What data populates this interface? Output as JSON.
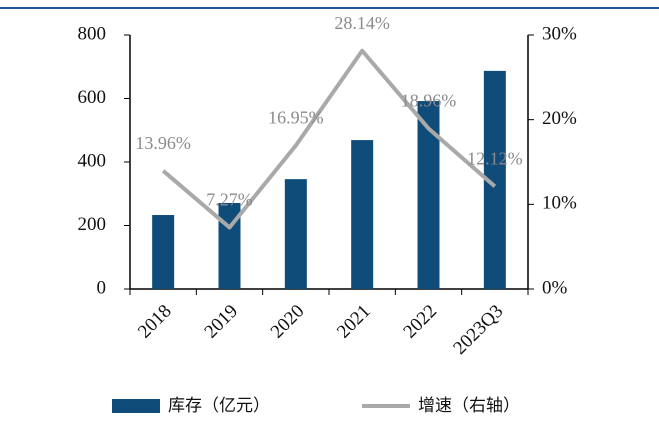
{
  "chart_data": {
    "type": "bar",
    "categories": [
      "2018",
      "2019",
      "2020",
      "2021",
      "2022",
      "2023Q3"
    ],
    "series": [
      {
        "name": "库存（亿元）",
        "color": "#0f4c7a",
        "values": [
          233,
          271,
          346,
          469,
          592,
          687
        ]
      },
      {
        "name": "增速（右轴）",
        "color": "#a9a9a9",
        "type": "line",
        "axis": "y2",
        "values": [
          13.96,
          7.27,
          16.95,
          28.14,
          18.96,
          12.12
        ],
        "value_labels": [
          "13.96%",
          "7.27%",
          "16.95%",
          "28.14%",
          "18.96%",
          "12.12%"
        ]
      }
    ],
    "ylim": [
      0,
      800
    ],
    "yticks": [
      0,
      200,
      400,
      600,
      800
    ],
    "y2lim": [
      0,
      30
    ],
    "y2ticks": [
      {
        "value": 0,
        "label": "0%"
      },
      {
        "value": 10,
        "label": "10%"
      },
      {
        "value": 20,
        "label": "20%"
      },
      {
        "value": 30,
        "label": "30%"
      }
    ]
  }
}
